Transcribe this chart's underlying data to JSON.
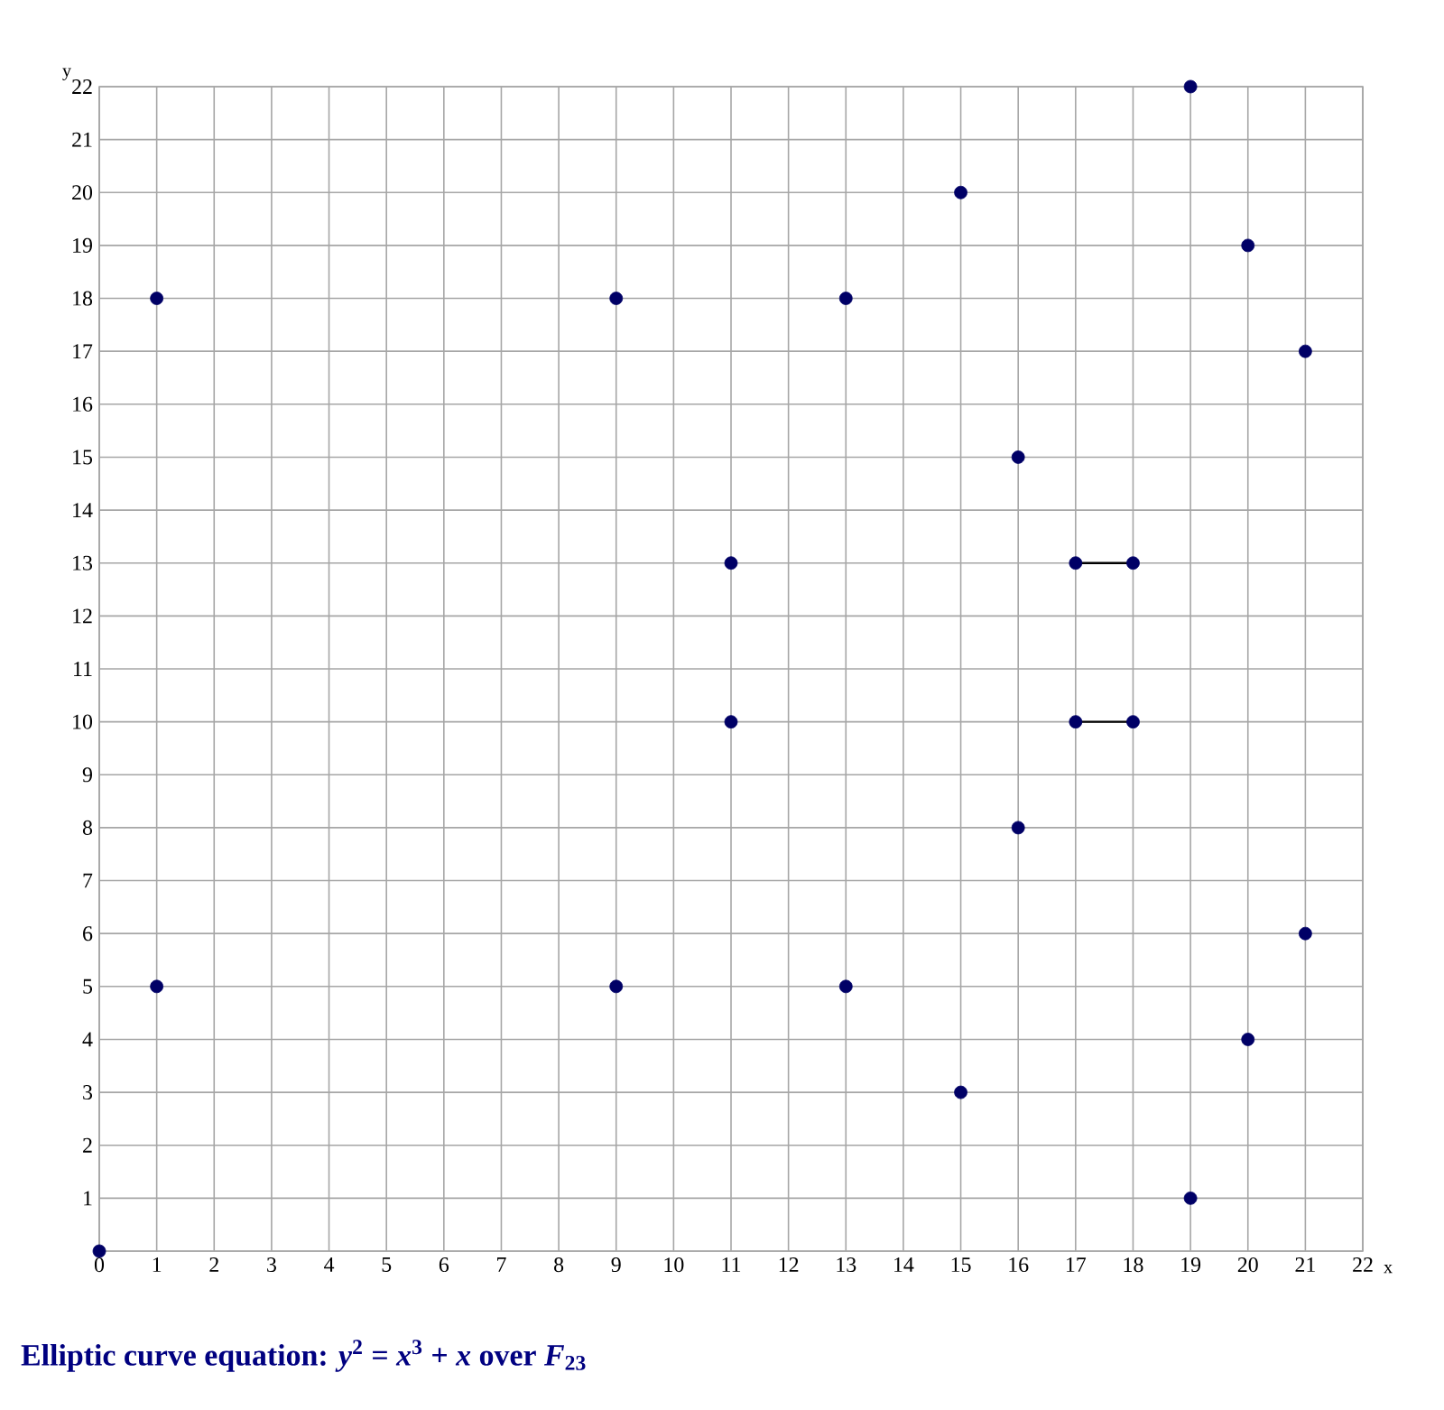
{
  "chart_data": {
    "type": "scatter",
    "title": "Elliptic curve equation: *y*$^{2}$ = *x*$^{3}$ + *x* over *F*$_{23}$",
    "xlabel": "x",
    "ylabel": "y",
    "xlim": [
      0,
      22
    ],
    "ylim": [
      0,
      22
    ],
    "xticks": [
      0,
      1,
      2,
      3,
      4,
      5,
      6,
      7,
      8,
      9,
      10,
      11,
      12,
      13,
      14,
      15,
      16,
      17,
      18,
      19,
      20,
      21,
      22
    ],
    "yticks": [
      {
        "value": 0,
        "label": null
      },
      1,
      2,
      3,
      4,
      5,
      6,
      7,
      8,
      9,
      10,
      11,
      12,
      13,
      14,
      15,
      16,
      17,
      18,
      19,
      20,
      21,
      22
    ],
    "grid": true,
    "marker": "circle",
    "series": [
      {
        "color": "#000066",
        "x": [
          0,
          1,
          1,
          9,
          9,
          11,
          11,
          13,
          13,
          15,
          15,
          16,
          16,
          17,
          17,
          18,
          18,
          19,
          19,
          20,
          20,
          21,
          21
        ],
        "values": [
          0,
          5,
          18,
          5,
          18,
          10,
          13,
          5,
          18,
          3,
          20,
          8,
          15,
          10,
          13,
          10,
          13,
          1,
          22,
          4,
          19,
          6,
          17
        ]
      },
      {
        "type": "line",
        "marker": "none",
        "color": "#000000",
        "x": [
          17,
          18
        ],
        "values": [
          13,
          13
        ]
      },
      {
        "type": "line",
        "marker": "none",
        "color": "#000000",
        "x": [
          17,
          18
        ],
        "values": [
          10,
          10
        ]
      }
    ]
  }
}
